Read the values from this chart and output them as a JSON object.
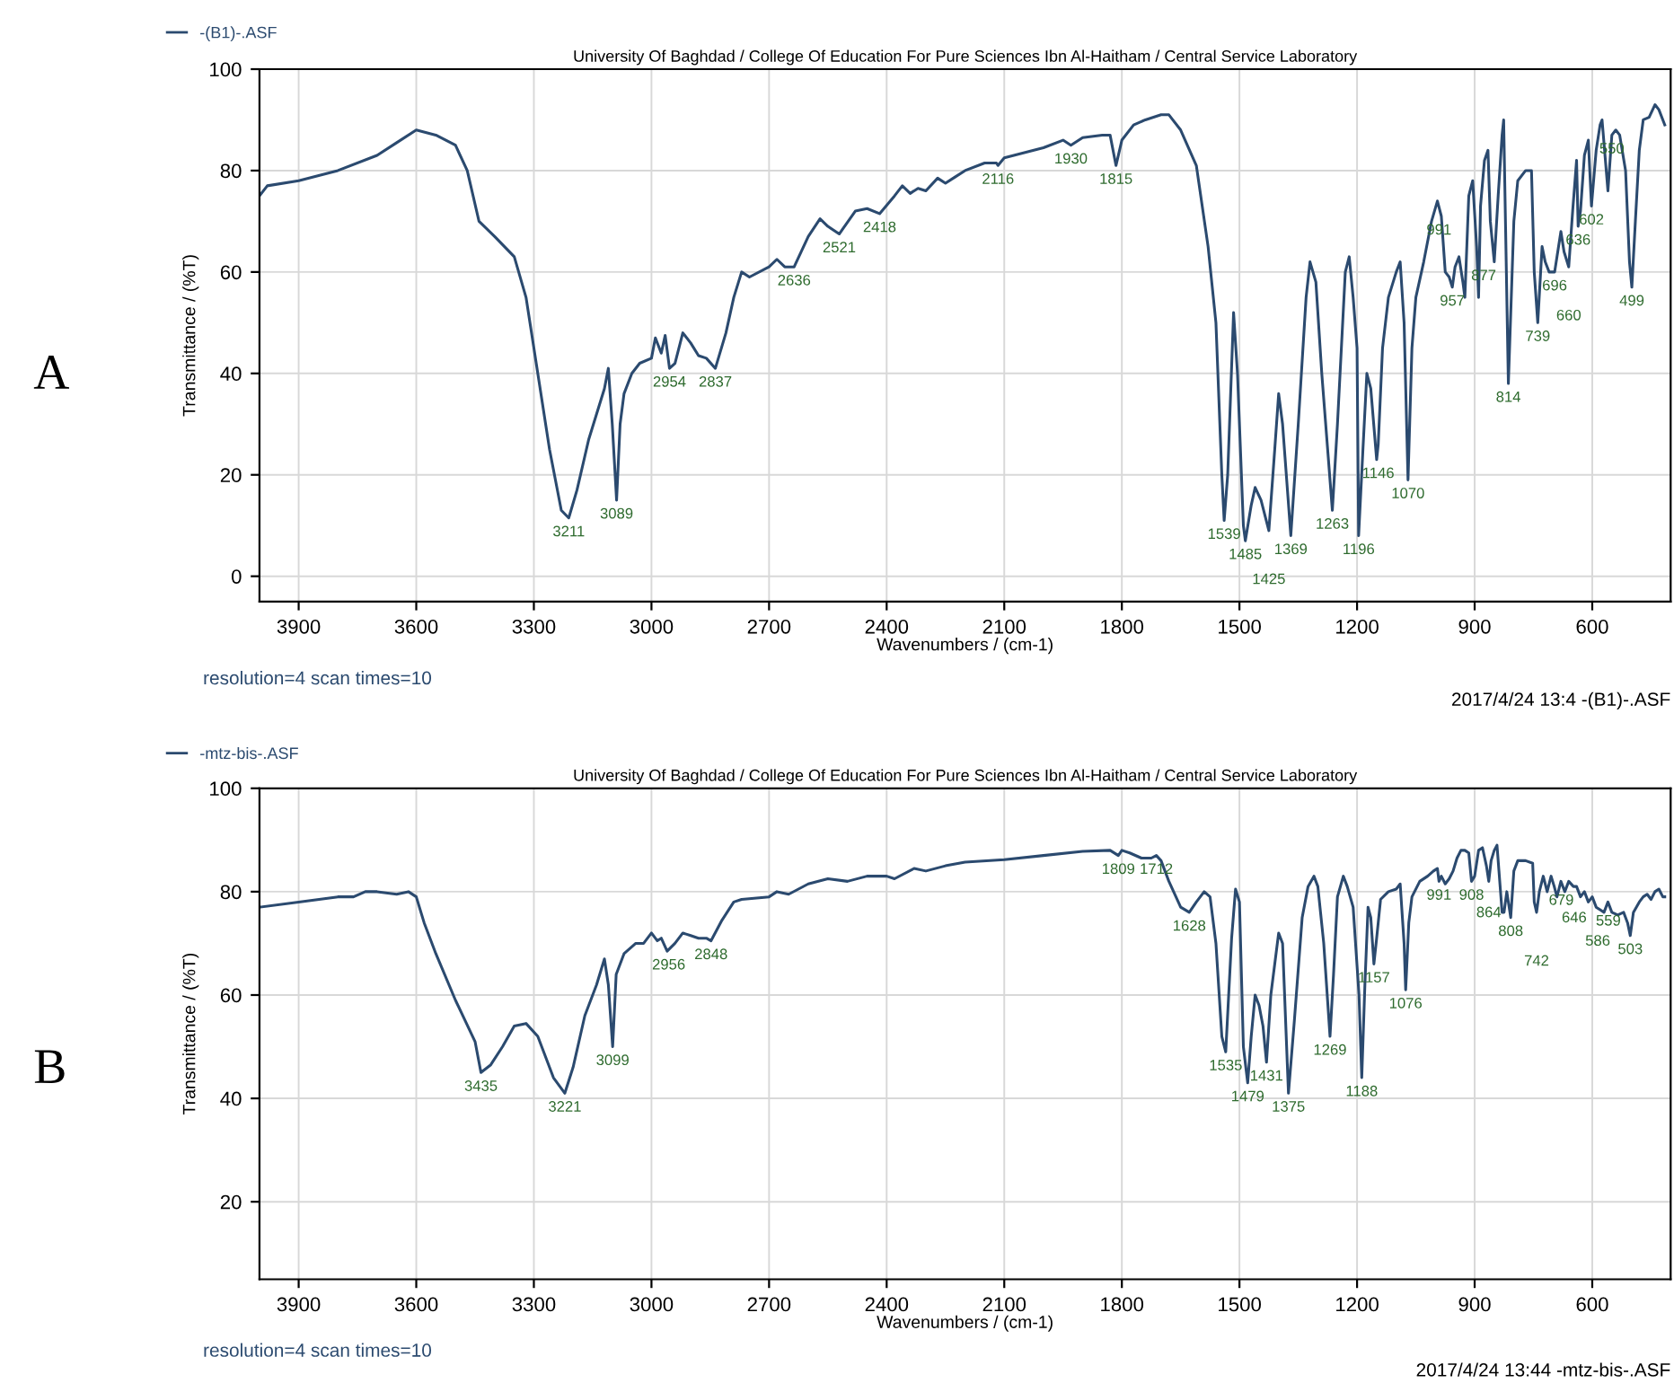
{
  "chart_data": [
    {
      "type": "line",
      "title": "University Of Baghdad / College Of Education For Pure Sciences Ibn Al-Haitham / Central Service Laboratory",
      "xlabel": "Wavenumbers / (cm-1)",
      "ylabel": "Transmittance / (%T)",
      "xlim": [
        4000,
        400
      ],
      "ylim": [
        -5,
        100
      ],
      "xticks": [
        3900,
        3600,
        3300,
        3000,
        2700,
        2400,
        2100,
        1800,
        1500,
        1200,
        900,
        600
      ],
      "yticks": [
        0,
        20,
        40,
        60,
        80,
        100
      ],
      "grid": true,
      "legend": "top left",
      "line_style": "solid",
      "marker": "none",
      "series": [
        {
          "name": "-(B1)-.ASF",
          "color": "#2b4a6f",
          "x": [
            4000,
            3980,
            3900,
            3800,
            3700,
            3650,
            3600,
            3550,
            3500,
            3470,
            3440,
            3400,
            3350,
            3320,
            3290,
            3260,
            3230,
            3211,
            3190,
            3160,
            3120,
            3110,
            3100,
            3089,
            3080,
            3070,
            3050,
            3030,
            3000,
            2990,
            2975,
            2965,
            2954,
            2940,
            2920,
            2900,
            2880,
            2860,
            2837,
            2810,
            2790,
            2770,
            2750,
            2700,
            2680,
            2660,
            2636,
            2600,
            2570,
            2550,
            2521,
            2480,
            2450,
            2418,
            2380,
            2360,
            2340,
            2320,
            2300,
            2270,
            2250,
            2230,
            2200,
            2150,
            2120,
            2116,
            2100,
            2000,
            1950,
            1930,
            1900,
            1850,
            1830,
            1815,
            1800,
            1770,
            1740,
            1700,
            1680,
            1650,
            1610,
            1580,
            1560,
            1545,
            1539,
            1530,
            1515,
            1505,
            1490,
            1485,
            1470,
            1460,
            1445,
            1425,
            1410,
            1400,
            1390,
            1369,
            1350,
            1330,
            1320,
            1305,
            1290,
            1263,
            1250,
            1230,
            1220,
            1210,
            1200,
            1196,
            1185,
            1175,
            1165,
            1150,
            1146,
            1135,
            1120,
            1100,
            1090,
            1080,
            1070,
            1060,
            1050,
            1030,
            1010,
            995,
            985,
            975,
            965,
            957,
            950,
            940,
            930,
            925,
            915,
            905,
            895,
            890,
            885,
            875,
            866,
            860,
            850,
            840,
            830,
            826,
            814,
            800,
            790,
            770,
            755,
            748,
            739,
            728,
            720,
            710,
            700,
            696,
            690,
            680,
            672,
            660,
            650,
            640,
            636,
            630,
            620,
            610,
            602,
            590,
            580,
            575,
            560,
            550,
            540,
            530,
            515,
            505,
            499,
            490,
            480,
            470,
            455,
            440,
            430,
            415
          ],
          "values": [
            75,
            77,
            78,
            80,
            83,
            85.5,
            88,
            87,
            85,
            80,
            70,
            67,
            63,
            55,
            40,
            25,
            13,
            11.5,
            17,
            27,
            37,
            41,
            30,
            15,
            30,
            36,
            40,
            42,
            43,
            47,
            44,
            47.5,
            41,
            42,
            48,
            46,
            43.5,
            43,
            41,
            48,
            55,
            60,
            59,
            61,
            62.5,
            61,
            61,
            67,
            70.5,
            69,
            67.5,
            72,
            72.5,
            71.5,
            75,
            77,
            75.5,
            76.5,
            76,
            78.5,
            77.5,
            78.5,
            80,
            81.5,
            81.5,
            81,
            82.5,
            84.5,
            86,
            85,
            86.5,
            87,
            87,
            81,
            86,
            89,
            90,
            91,
            91,
            88,
            81,
            65,
            50,
            20,
            11,
            20,
            52,
            40,
            10,
            7,
            14,
            17.5,
            15,
            9,
            25,
            36,
            30,
            8,
            30,
            55,
            62,
            58,
            40,
            13,
            30,
            60,
            63,
            55,
            45,
            8,
            25,
            40,
            37,
            23,
            26,
            45,
            55,
            60,
            62,
            50,
            19,
            45,
            55,
            62,
            70,
            74,
            71,
            60,
            59,
            57,
            61,
            63,
            58,
            55,
            75,
            78,
            65,
            55,
            73,
            82,
            84,
            70,
            62,
            75,
            87,
            90,
            38,
            70,
            78,
            80,
            80,
            60,
            50,
            65,
            62,
            60,
            60,
            60,
            63,
            68,
            64,
            61,
            72,
            82,
            69,
            72,
            83,
            86,
            73,
            84,
            89,
            90,
            76,
            87,
            88,
            87,
            80,
            62,
            57,
            70,
            84,
            90,
            90.5,
            93,
            92,
            89
          ]
        }
      ],
      "annotations": [
        "A",
        "resolution=4 scan times=10",
        "2017/4/24 13:4 -(B1)-.ASF",
        {
          "text": "3211",
          "x": 3211,
          "y": 11.5
        },
        {
          "text": "3089",
          "x": 3089,
          "y": 15
        },
        {
          "text": "2954",
          "x": 2954,
          "y": 41
        },
        {
          "text": "2837",
          "x": 2837,
          "y": 41
        },
        {
          "text": "2636",
          "x": 2636,
          "y": 61
        },
        {
          "text": "2521",
          "x": 2521,
          "y": 67.5
        },
        {
          "text": "2418",
          "x": 2418,
          "y": 71.5
        },
        {
          "text": "2116",
          "x": 2116,
          "y": 81
        },
        {
          "text": "1930",
          "x": 1930,
          "y": 85
        },
        {
          "text": "1815",
          "x": 1815,
          "y": 81
        },
        {
          "text": "1539",
          "x": 1539,
          "y": 11
        },
        {
          "text": "1485",
          "x": 1485,
          "y": 7
        },
        {
          "text": "1425",
          "x": 1425,
          "y": 9
        },
        {
          "text": "1369",
          "x": 1369,
          "y": 8
        },
        {
          "text": "1263",
          "x": 1263,
          "y": 13
        },
        {
          "text": "1196",
          "x": 1196,
          "y": 8
        },
        {
          "text": "1146",
          "x": 1146,
          "y": 23
        },
        {
          "text": "1070",
          "x": 1070,
          "y": 19
        },
        {
          "text": "991",
          "x": 991,
          "y": 71
        },
        {
          "text": "957",
          "x": 957,
          "y": 57
        },
        {
          "text": "877",
          "x": 877,
          "y": 62
        },
        {
          "text": "814",
          "x": 814,
          "y": 38
        },
        {
          "text": "739",
          "x": 739,
          "y": 50
        },
        {
          "text": "696",
          "x": 696,
          "y": 60
        },
        {
          "text": "660",
          "x": 660,
          "y": 61
        },
        {
          "text": "636",
          "x": 636,
          "y": 69
        },
        {
          "text": "602",
          "x": 602,
          "y": 73
        },
        {
          "text": "550",
          "x": 550,
          "y": 87
        },
        {
          "text": "499",
          "x": 499,
          "y": 57
        }
      ]
    },
    {
      "type": "line",
      "title": "University Of Baghdad / College Of Education For Pure Sciences Ibn Al-Haitham / Central Service Laboratory",
      "xlabel": "Wavenumbers / (cm-1)",
      "ylabel": "Transmittance / (%T)",
      "xlim": [
        4000,
        400
      ],
      "ylim": [
        5,
        100
      ],
      "xticks": [
        3900,
        3600,
        3300,
        3000,
        2700,
        2400,
        2100,
        1800,
        1500,
        1200,
        900,
        600
      ],
      "yticks": [
        20,
        40,
        60,
        80,
        100
      ],
      "grid": true,
      "legend": "top left",
      "line_style": "solid",
      "marker": "none",
      "series": [
        {
          "name": "-mtz-bis-.ASF",
          "color": "#2b4a6f",
          "x": [
            4000,
            3900,
            3800,
            3760,
            3730,
            3700,
            3650,
            3620,
            3600,
            3580,
            3550,
            3500,
            3450,
            3435,
            3410,
            3380,
            3350,
            3320,
            3290,
            3250,
            3221,
            3200,
            3170,
            3140,
            3120,
            3110,
            3099,
            3090,
            3070,
            3040,
            3020,
            3000,
            2985,
            2975,
            2960,
            2940,
            2920,
            2900,
            2880,
            2860,
            2848,
            2820,
            2790,
            2770,
            2700,
            2680,
            2650,
            2600,
            2550,
            2500,
            2450,
            2400,
            2380,
            2330,
            2300,
            2250,
            2200,
            2100,
            2000,
            1900,
            1830,
            1809,
            1800,
            1780,
            1750,
            1725,
            1712,
            1700,
            1680,
            1650,
            1628,
            1610,
            1590,
            1575,
            1560,
            1545,
            1535,
            1520,
            1510,
            1500,
            1490,
            1479,
            1470,
            1460,
            1450,
            1440,
            1431,
            1420,
            1400,
            1390,
            1375,
            1360,
            1340,
            1325,
            1310,
            1300,
            1285,
            1269,
            1260,
            1250,
            1235,
            1225,
            1210,
            1195,
            1188,
            1180,
            1172,
            1165,
            1157,
            1150,
            1140,
            1120,
            1100,
            1090,
            1080,
            1076,
            1068,
            1060,
            1040,
            1020,
            1005,
            995,
            991,
            985,
            975,
            965,
            955,
            945,
            935,
            925,
            915,
            908,
            900,
            890,
            880,
            870,
            864,
            858,
            850,
            843,
            838,
            830,
            825,
            818,
            808,
            800,
            790,
            770,
            752,
            748,
            742,
            735,
            725,
            715,
            705,
            697,
            690,
            680,
            670,
            660,
            648,
            640,
            630,
            620,
            610,
            600,
            590,
            580,
            570,
            560,
            550,
            535,
            520,
            510,
            503,
            495,
            480,
            470,
            460,
            450,
            440,
            430,
            420,
            415
          ],
          "values": [
            77,
            78,
            79,
            79,
            80,
            80,
            79.5,
            80,
            79,
            74,
            68,
            59,
            51,
            45,
            46.5,
            50,
            54,
            54.5,
            52,
            44,
            41,
            46,
            56,
            62,
            67,
            62,
            50,
            64,
            68,
            70,
            70,
            72,
            70.5,
            71,
            68.5,
            70,
            72,
            71.5,
            71,
            71,
            70.5,
            74.5,
            78,
            78.5,
            79,
            80,
            79.5,
            81.5,
            82.5,
            82,
            83,
            83,
            82.5,
            84.5,
            84,
            85,
            85.7,
            86.2,
            87,
            87.8,
            88,
            87,
            88,
            87.5,
            86.5,
            86.5,
            87,
            86,
            82,
            77,
            76,
            78,
            80,
            79,
            70,
            52,
            49,
            71,
            80.5,
            78,
            50,
            43,
            52,
            60,
            58,
            54,
            47,
            60,
            72,
            70,
            41,
            55,
            75,
            81,
            83,
            81,
            70,
            52,
            64,
            79,
            83,
            81,
            77,
            60,
            44,
            62,
            77,
            75,
            66,
            71,
            78.5,
            80,
            80.5,
            81.5,
            70,
            61,
            74,
            79,
            82,
            83,
            84,
            84.5,
            82,
            83,
            81.5,
            82.5,
            84,
            86.5,
            88,
            88,
            87.5,
            82,
            83,
            88,
            88.5,
            85,
            82,
            86,
            88,
            89,
            84,
            76,
            76,
            80,
            75,
            84,
            86,
            86,
            85.5,
            78,
            76,
            80,
            83,
            80,
            83,
            81,
            79,
            82,
            80,
            82,
            81,
            81,
            79,
            80,
            78,
            79,
            77,
            76.5,
            76,
            78,
            76,
            75.5,
            76,
            74,
            71.5,
            76,
            78,
            79,
            79.5,
            78.5,
            80,
            80.5,
            79,
            79
          ]
        }
      ],
      "annotations": [
        "B",
        "resolution=4 scan times=10",
        "2017/4/24 13:44 -mtz-bis-.ASF",
        {
          "text": "3435",
          "x": 3435,
          "y": 45
        },
        {
          "text": "3221",
          "x": 3221,
          "y": 41
        },
        {
          "text": "3099",
          "x": 3099,
          "y": 50
        },
        {
          "text": "2956",
          "x": 2956,
          "y": 68.5
        },
        {
          "text": "2848",
          "x": 2848,
          "y": 70.5
        },
        {
          "text": "1809",
          "x": 1809,
          "y": 87
        },
        {
          "text": "1712",
          "x": 1712,
          "y": 87
        },
        {
          "text": "1628",
          "x": 1628,
          "y": 76
        },
        {
          "text": "1535",
          "x": 1535,
          "y": 49
        },
        {
          "text": "1479",
          "x": 1479,
          "y": 43
        },
        {
          "text": "1431",
          "x": 1431,
          "y": 47
        },
        {
          "text": "1375",
          "x": 1375,
          "y": 41
        },
        {
          "text": "1269",
          "x": 1269,
          "y": 52
        },
        {
          "text": "1188",
          "x": 1188,
          "y": 44
        },
        {
          "text": "1157",
          "x": 1157,
          "y": 66
        },
        {
          "text": "1076",
          "x": 1076,
          "y": 61
        },
        {
          "text": "991",
          "x": 991,
          "y": 82
        },
        {
          "text": "908",
          "x": 908,
          "y": 82
        },
        {
          "text": "864",
          "x": 864,
          "y": 82
        },
        {
          "text": "808",
          "x": 808,
          "y": 75
        },
        {
          "text": "742",
          "x": 742,
          "y": 76
        },
        {
          "text": "679",
          "x": 679,
          "y": 81
        },
        {
          "text": "646",
          "x": 646,
          "y": 81
        },
        {
          "text": "586",
          "x": 586,
          "y": 76.5
        },
        {
          "text": "559",
          "x": 559,
          "y": 77
        },
        {
          "text": "503",
          "x": 503,
          "y": 71.5
        }
      ]
    }
  ]
}
